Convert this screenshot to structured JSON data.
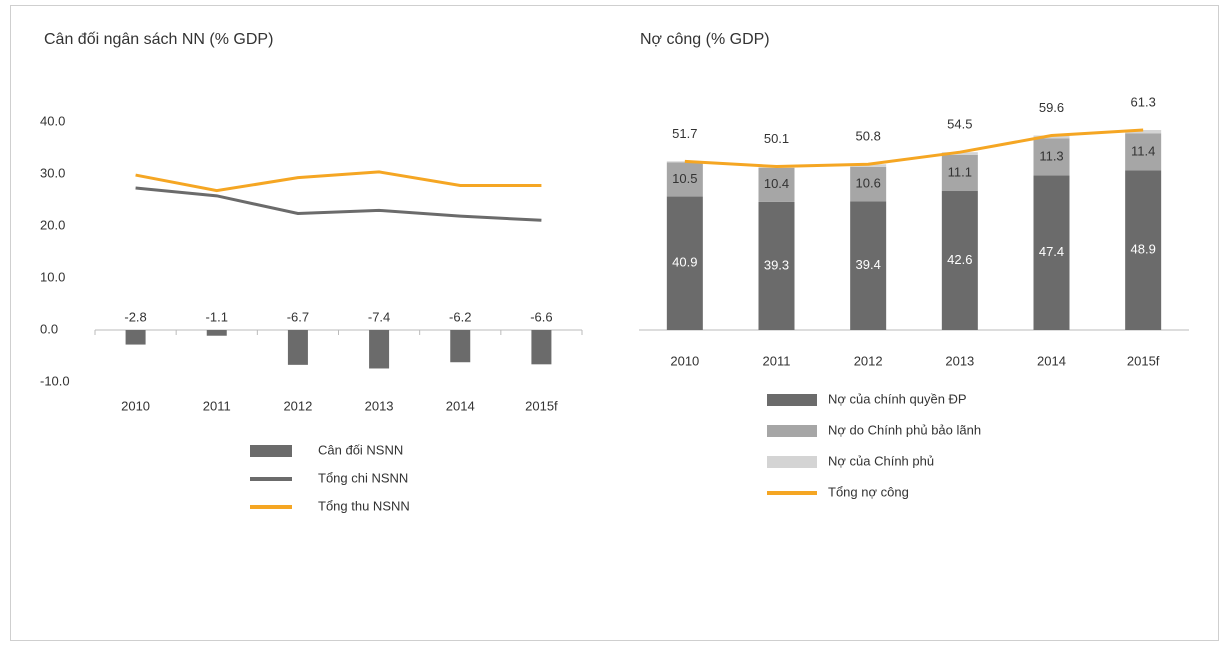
{
  "chart_data": [
    {
      "type": "bar_line",
      "title": "Cân đối ngân sách NN (% GDP)",
      "categories": [
        "2010",
        "2011",
        "2012",
        "2013",
        "2014",
        "2015f"
      ],
      "series": [
        {
          "name": "Cân đối NSNN",
          "type": "bar",
          "color": "#6b6b6b",
          "values": [
            -2.8,
            -1.1,
            -6.7,
            -7.4,
            -6.2,
            -6.6
          ]
        },
        {
          "name": "Tổng chi NSNN",
          "type": "line",
          "color": "#6b6b6b",
          "values": [
            27.3,
            25.8,
            22.4,
            23.0,
            21.9,
            21.1
          ]
        },
        {
          "name": "Tổng thu NSNN",
          "type": "line",
          "color": "#f5a623",
          "values": [
            29.8,
            26.8,
            29.3,
            30.4,
            27.8,
            27.8
          ]
        }
      ],
      "ylim": [
        -10,
        40
      ],
      "yticks": [
        {
          "value": -10,
          "label": "-10.0"
        },
        {
          "value": 0,
          "label": "0.0"
        },
        {
          "value": 10,
          "label": "10.0"
        },
        {
          "value": 20,
          "label": "20.0"
        },
        {
          "value": 30,
          "label": "30.0"
        },
        {
          "value": 40,
          "label": "40.0"
        }
      ]
    },
    {
      "type": "stacked_bar_line",
      "title": "Nợ công (% GDP)",
      "categories": [
        "2010",
        "2011",
        "2012",
        "2013",
        "2014",
        "2015f"
      ],
      "series": [
        {
          "name": "Nợ của chính quyền ĐP",
          "type": "bar",
          "color": "#6b6b6b",
          "show_labels": true,
          "values": [
            40.9,
            39.3,
            39.4,
            42.6,
            47.4,
            48.9
          ]
        },
        {
          "name": "Nợ do Chính phủ bảo lãnh",
          "type": "bar",
          "color": "#a6a6a6",
          "show_labels": true,
          "values": [
            10.5,
            10.4,
            10.6,
            11.1,
            11.3,
            11.4
          ]
        },
        {
          "name": "Nợ của Chính phủ",
          "type": "bar",
          "color": "#d4d4d4",
          "show_labels": false,
          "values": [
            0.3,
            0.4,
            0.8,
            0.8,
            0.9,
            1.0
          ]
        },
        {
          "name": "Tổng nợ công",
          "type": "line",
          "color": "#f5a623",
          "show_labels": true,
          "values": [
            51.7,
            50.1,
            50.8,
            54.5,
            59.6,
            61.3
          ]
        }
      ]
    }
  ]
}
